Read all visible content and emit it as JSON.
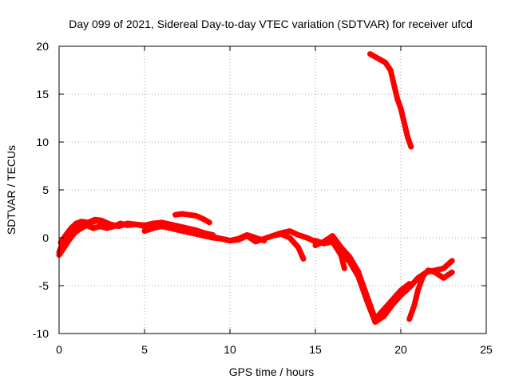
{
  "chart_data": {
    "type": "line",
    "title": "Day 099 of 2021, Sidereal Day-to-day VTEC variation (SDTVAR) for receiver ufcd",
    "xlabel": "GPS time / hours",
    "ylabel": "SDTVAR / TECUs",
    "xlim": [
      0,
      25
    ],
    "ylim": [
      -10,
      20
    ],
    "xticks": [
      0,
      5,
      10,
      15,
      20,
      25
    ],
    "xtick_labels": [
      "0",
      "5",
      "10",
      "15",
      "20",
      "25"
    ],
    "yticks": [
      -10,
      -5,
      0,
      5,
      10,
      15,
      20
    ],
    "ytick_labels": [
      "-10",
      "-5",
      "0",
      "5",
      "10",
      "15",
      "20"
    ],
    "grid": true,
    "color": "#ff0000",
    "series": [
      {
        "name": "track-1",
        "x": [
          0.0,
          0.2,
          0.5,
          0.8,
          1.0,
          1.3,
          1.6,
          2.0,
          2.4,
          2.8,
          3.2,
          3.6,
          4.0,
          4.5,
          5.0
        ],
        "y": [
          -1.5,
          -0.6,
          0.2,
          0.7,
          1.1,
          1.4,
          1.3,
          1.0,
          1.2,
          1.0,
          1.2,
          1.5,
          1.3,
          1.4,
          1.2
        ]
      },
      {
        "name": "track-2",
        "x": [
          0.1,
          0.4,
          0.7,
          1.0,
          1.3,
          1.7,
          2.1,
          2.5,
          3.0,
          3.5,
          4.0,
          4.5,
          5.0,
          5.5,
          6.0,
          6.5,
          7.0,
          7.5,
          8.0,
          8.5,
          9.0
        ],
        "y": [
          -0.5,
          0.3,
          1.0,
          1.5,
          1.7,
          1.6,
          1.9,
          1.8,
          1.4,
          1.2,
          1.5,
          1.4,
          1.3,
          1.5,
          1.6,
          1.4,
          1.2,
          1.0,
          0.8,
          0.5,
          0.3
        ]
      },
      {
        "name": "track-3",
        "x": [
          0.0,
          0.3,
          0.6,
          0.9,
          1.2,
          1.5,
          1.8,
          2.2,
          2.6,
          3.0
        ],
        "y": [
          -1.8,
          -1.0,
          -0.2,
          0.5,
          0.9,
          1.2,
          1.5,
          1.8,
          1.5,
          1.1
        ]
      },
      {
        "name": "track-4",
        "x": [
          5.0,
          5.5,
          6.0,
          6.5,
          7.0,
          7.5,
          8.0,
          8.5,
          9.0,
          9.5,
          10.0,
          10.5,
          11.0,
          11.5,
          12.0
        ],
        "y": [
          0.7,
          1.0,
          1.2,
          1.0,
          0.8,
          0.6,
          0.4,
          0.2,
          0.0,
          -0.1,
          -0.3,
          -0.1,
          0.3,
          0.0,
          -0.3
        ]
      },
      {
        "name": "track-5",
        "x": [
          6.8,
          7.2,
          7.6,
          8.0,
          8.4,
          8.8
        ],
        "y": [
          2.4,
          2.5,
          2.4,
          2.3,
          2.0,
          1.6
        ]
      },
      {
        "name": "track-6",
        "x": [
          8.0,
          8.5,
          9.0,
          9.5,
          10.0,
          10.5,
          11.0,
          11.5,
          12.0,
          12.5,
          13.0,
          13.5,
          14.0,
          14.5,
          15.0
        ],
        "y": [
          0.8,
          0.4,
          0.1,
          -0.1,
          -0.3,
          -0.2,
          0.2,
          -0.4,
          -0.1,
          0.2,
          0.5,
          0.7,
          0.3,
          0.0,
          -0.4
        ]
      },
      {
        "name": "track-7",
        "x": [
          12.5,
          13.0,
          13.5,
          14.0,
          14.3
        ],
        "y": [
          0.2,
          0.4,
          0.0,
          -1.0,
          -2.2
        ]
      },
      {
        "name": "track-8",
        "x": [
          15.0,
          15.5,
          16.0,
          16.5,
          16.7
        ],
        "y": [
          -0.3,
          -0.6,
          -0.4,
          -1.8,
          -3.2
        ]
      },
      {
        "name": "track-9",
        "x": [
          15.0,
          15.5,
          16.0,
          16.5,
          17.0,
          17.5,
          18.0,
          18.5,
          19.0,
          19.5,
          20.0,
          20.5
        ],
        "y": [
          -0.8,
          -0.4,
          0.2,
          -1.0,
          -2.0,
          -3.5,
          -6.0,
          -8.5,
          -7.5,
          -6.5,
          -5.5,
          -4.8
        ]
      },
      {
        "name": "track-10",
        "x": [
          16.5,
          17.0,
          17.5,
          18.0,
          18.5,
          19.0,
          19.5,
          20.0,
          20.5,
          21.0,
          21.5,
          22.0,
          22.5,
          23.0
        ],
        "y": [
          -1.5,
          -2.5,
          -4.0,
          -6.5,
          -8.8,
          -8.2,
          -7.0,
          -6.0,
          -5.2,
          -4.2,
          -3.6,
          -3.4,
          -3.2,
          -2.4
        ]
      },
      {
        "name": "track-11",
        "x": [
          20.5,
          20.8,
          21.0,
          21.3,
          21.6,
          22.0,
          22.5,
          23.0
        ],
        "y": [
          -8.5,
          -7.0,
          -5.5,
          -4.0,
          -3.4,
          -3.6,
          -4.2,
          -3.6
        ]
      },
      {
        "name": "track-12",
        "x": [
          18.2,
          18.5,
          18.8,
          19.1,
          19.4,
          19.6,
          19.8,
          20.0,
          20.2,
          20.4,
          20.6
        ],
        "y": [
          19.2,
          18.9,
          18.6,
          18.3,
          17.5,
          16.0,
          14.5,
          13.5,
          12.0,
          10.5,
          9.5
        ]
      }
    ]
  }
}
